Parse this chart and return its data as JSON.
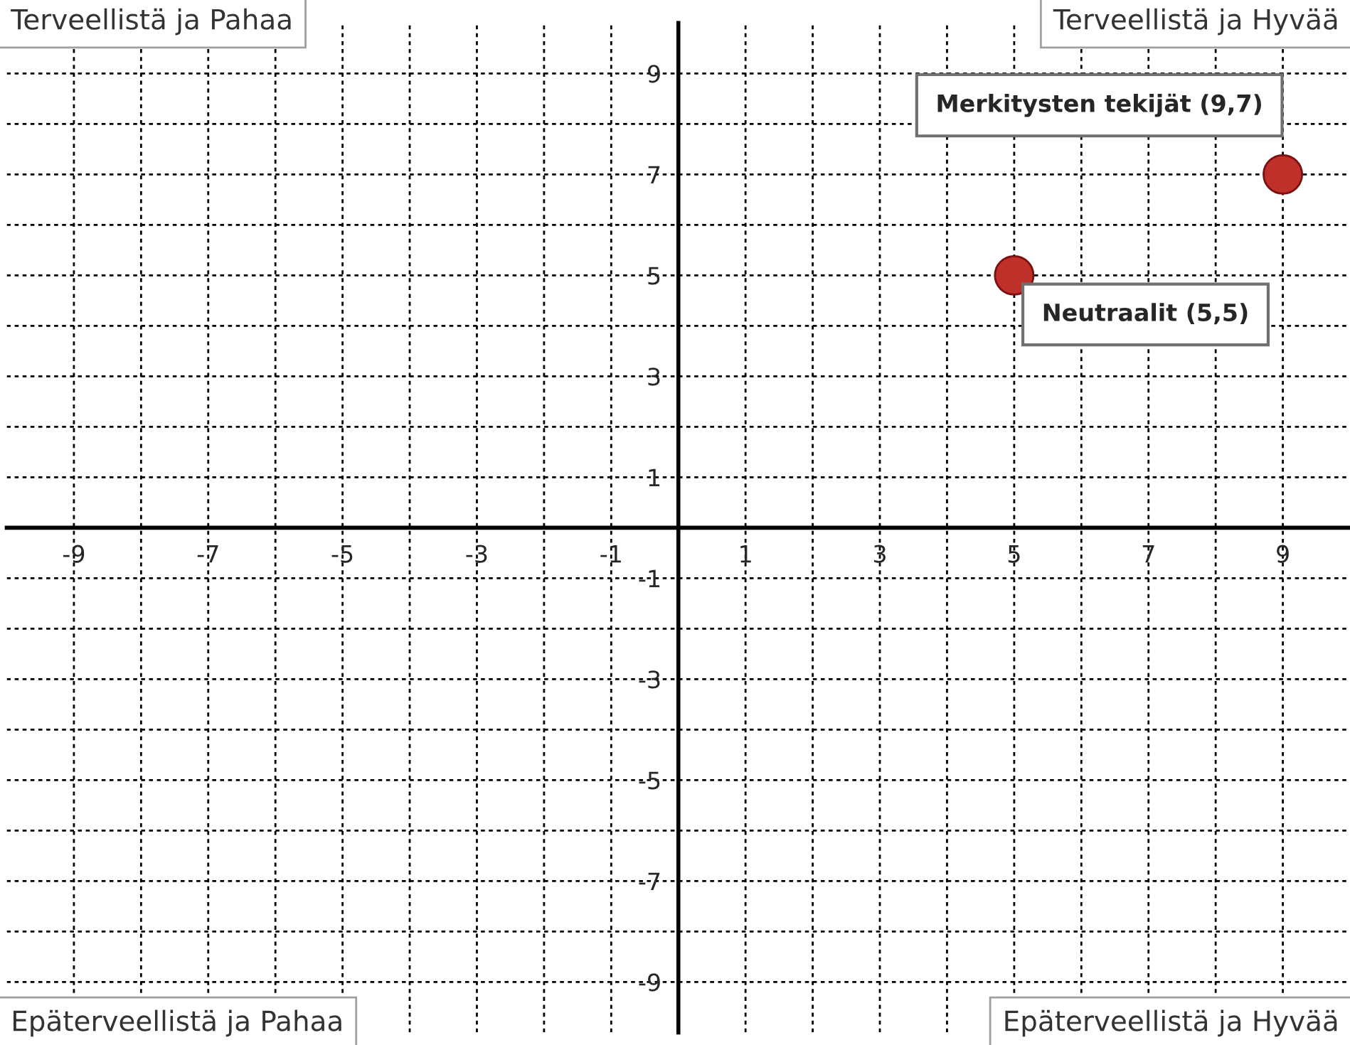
{
  "chart_data": {
    "type": "scatter",
    "x": [
      9,
      5
    ],
    "values": [
      7,
      5
    ],
    "color": "#c0302a",
    "marker": "circle",
    "grid": true,
    "legend": false,
    "xlim": [
      -10,
      10
    ],
    "ylim": [
      -10,
      10
    ],
    "xticks": [
      {
        "value": -9,
        "label": "-9"
      },
      {
        "value": -8,
        "label": null
      },
      {
        "value": -7,
        "label": "-7"
      },
      {
        "value": -6,
        "label": null
      },
      {
        "value": -5,
        "label": "-5"
      },
      {
        "value": -4,
        "label": null
      },
      {
        "value": -3,
        "label": "-3"
      },
      {
        "value": -2,
        "label": null
      },
      {
        "value": -1,
        "label": "-1"
      },
      {
        "value": 0,
        "label": null
      },
      {
        "value": 1,
        "label": "1"
      },
      {
        "value": 2,
        "label": null
      },
      {
        "value": 3,
        "label": "3"
      },
      {
        "value": 4,
        "label": null
      },
      {
        "value": 5,
        "label": "5"
      },
      {
        "value": 6,
        "label": null
      },
      {
        "value": 7,
        "label": "7"
      },
      {
        "value": 8,
        "label": null
      },
      {
        "value": 9,
        "label": "9"
      }
    ],
    "yticks": [
      {
        "value": -9,
        "label": "-9"
      },
      {
        "value": -8,
        "label": null
      },
      {
        "value": -7,
        "label": "-7"
      },
      {
        "value": -6,
        "label": null
      },
      {
        "value": -5,
        "label": "-5"
      },
      {
        "value": -4,
        "label": null
      },
      {
        "value": -3,
        "label": "-3"
      },
      {
        "value": -2,
        "label": null
      },
      {
        "value": -1,
        "label": "-1"
      },
      {
        "value": 0,
        "label": null
      },
      {
        "value": 1,
        "label": "1"
      },
      {
        "value": 2,
        "label": null
      },
      {
        "value": 3,
        "label": "3"
      },
      {
        "value": 4,
        "label": null
      },
      {
        "value": 5,
        "label": "5"
      },
      {
        "value": 6,
        "label": null
      },
      {
        "value": 7,
        "label": "7"
      },
      {
        "value": 8,
        "label": null
      },
      {
        "value": 9,
        "label": "9"
      }
    ],
    "annotations": [
      "Terveellistä ja Pahaa",
      "Terveellistä ja Hyvää",
      "Epäterveellistä ja Pahaa",
      "Epäterveellistä ja Hyvää",
      {
        "text": "Merkitysten tekijät (9,7)",
        "x": 9,
        "y": 7
      },
      {
        "text": "Neutraalit (5,5)",
        "x": 5,
        "y": 5
      }
    ]
  }
}
